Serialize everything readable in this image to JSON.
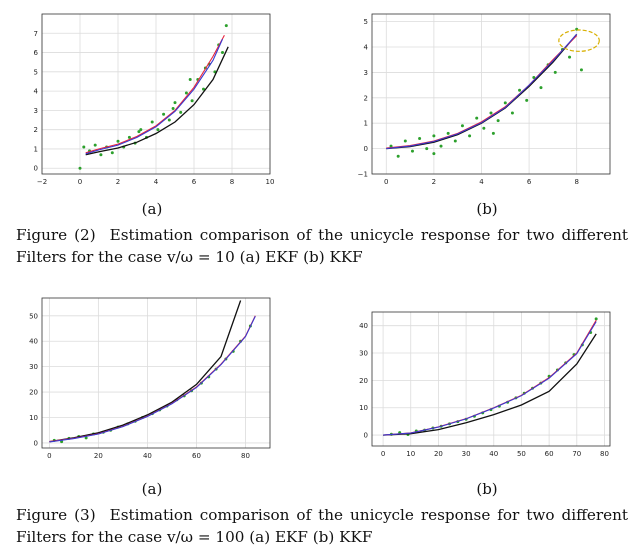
{
  "figure2": {
    "caption_number": "Figure (2)",
    "caption_text": "Estimation comparison of the unicycle response for two different Filters for the case v/ω = 10 (a) EKF (b) KKF",
    "label_a": "(a)",
    "label_b": "(b)"
  },
  "figure3": {
    "caption_number": "Figure (3)",
    "caption_text": "Estimation comparison of the unicycle response for two different Filters for the case v/ω = 100 (a) EKF (b) KKF",
    "label_a": "(a)",
    "label_b": "(b)"
  },
  "chart_data": [
    {
      "id": "fig2a",
      "type": "scatter",
      "xlim": [
        -2,
        10
      ],
      "ylim": [
        -0.3,
        8
      ],
      "xticks": [
        -2,
        0,
        2,
        4,
        6,
        8,
        10
      ],
      "yticks": [
        0,
        1,
        2,
        3,
        4,
        5,
        6,
        7
      ],
      "grid": true,
      "series": [
        {
          "role": "true-path",
          "color": "#111111",
          "points": [
            [
              0.3,
              0.7
            ],
            [
              1,
              0.85
            ],
            [
              2,
              1.05
            ],
            [
              3,
              1.35
            ],
            [
              4,
              1.8
            ],
            [
              5,
              2.4
            ],
            [
              6,
              3.3
            ],
            [
              7,
              4.6
            ],
            [
              7.8,
              6.3
            ]
          ]
        },
        {
          "role": "estimate-red",
          "color": "#e8243c",
          "points": [
            [
              0.3,
              0.8
            ],
            [
              1,
              1.0
            ],
            [
              2,
              1.25
            ],
            [
              3,
              1.65
            ],
            [
              4,
              2.2
            ],
            [
              5,
              3.0
            ],
            [
              6,
              4.2
            ],
            [
              7,
              5.8
            ],
            [
              7.6,
              6.9
            ]
          ]
        },
        {
          "role": "estimate-blue",
          "color": "#3a3ad0",
          "points": [
            [
              0.3,
              0.75
            ],
            [
              1,
              0.95
            ],
            [
              2,
              1.2
            ],
            [
              3,
              1.6
            ],
            [
              4,
              2.15
            ],
            [
              5,
              2.95
            ],
            [
              6,
              4.1
            ],
            [
              7,
              5.6
            ],
            [
              7.5,
              6.7
            ]
          ]
        },
        {
          "role": "measurements",
          "color": "#2ca02c",
          "points": [
            [
              0,
              0
            ],
            [
              0.2,
              1.1
            ],
            [
              0.5,
              0.9
            ],
            [
              0.8,
              1.2
            ],
            [
              1.1,
              0.7
            ],
            [
              1.4,
              1.1
            ],
            [
              1.7,
              0.8
            ],
            [
              2,
              1.4
            ],
            [
              2.3,
              1.1
            ],
            [
              2.6,
              1.6
            ],
            [
              2.9,
              1.3
            ],
            [
              3.2,
              2.0
            ],
            [
              3.5,
              1.6
            ],
            [
              3.8,
              2.4
            ],
            [
              4.1,
              2.0
            ],
            [
              4.4,
              2.8
            ],
            [
              4.7,
              2.5
            ],
            [
              5,
              3.4
            ],
            [
              5.3,
              2.9
            ],
            [
              5.6,
              3.9
            ],
            [
              5.9,
              3.5
            ],
            [
              6.2,
              4.6
            ],
            [
              6.5,
              4.1
            ],
            [
              6.8,
              5.4
            ],
            [
              7.1,
              5.0
            ],
            [
              7.3,
              6.4
            ],
            [
              7.5,
              6.0
            ],
            [
              7.7,
              7.4
            ],
            [
              6.6,
              5.2
            ],
            [
              5.8,
              4.6
            ],
            [
              4.9,
              3.1
            ],
            [
              3.1,
              1.9
            ]
          ]
        }
      ]
    },
    {
      "id": "fig2b",
      "type": "scatter",
      "xlim": [
        -0.6,
        9.4
      ],
      "ylim": [
        -1,
        5.3
      ],
      "xticks": [
        0,
        2,
        4,
        6,
        8
      ],
      "yticks": [
        -1,
        0,
        1,
        2,
        3,
        4,
        5
      ],
      "grid": true,
      "highlight_ellipse": {
        "cx": 8.1,
        "cy": 4.25,
        "rx": 0.85,
        "ry": 0.42,
        "color": "#d8b000"
      },
      "series": [
        {
          "role": "true-path",
          "color": "#111111",
          "points": [
            [
              0,
              0
            ],
            [
              1,
              0.08
            ],
            [
              2,
              0.25
            ],
            [
              3,
              0.55
            ],
            [
              4,
              1.0
            ],
            [
              5,
              1.6
            ],
            [
              6,
              2.45
            ],
            [
              7,
              3.4
            ],
            [
              8,
              4.5
            ]
          ]
        },
        {
          "role": "estimate-red",
          "color": "#e8243c",
          "points": [
            [
              0,
              0.02
            ],
            [
              1,
              0.12
            ],
            [
              2,
              0.3
            ],
            [
              3,
              0.6
            ],
            [
              4,
              1.05
            ],
            [
              5,
              1.65
            ],
            [
              6,
              2.5
            ],
            [
              7,
              3.5
            ],
            [
              8,
              4.45
            ]
          ]
        },
        {
          "role": "estimate-blue",
          "color": "#3a3ad0",
          "points": [
            [
              0,
              0
            ],
            [
              1,
              0.1
            ],
            [
              2,
              0.28
            ],
            [
              3,
              0.58
            ],
            [
              4,
              1.02
            ],
            [
              5,
              1.62
            ],
            [
              6,
              2.5
            ],
            [
              7,
              3.45
            ],
            [
              8,
              4.5
            ]
          ]
        },
        {
          "role": "measurements",
          "color": "#2ca02c",
          "points": [
            [
              0.2,
              0.1
            ],
            [
              0.5,
              -0.3
            ],
            [
              0.8,
              0.3
            ],
            [
              1.1,
              -0.1
            ],
            [
              1.4,
              0.4
            ],
            [
              1.7,
              0.0
            ],
            [
              2,
              0.5
            ],
            [
              2.3,
              0.1
            ],
            [
              2.6,
              0.6
            ],
            [
              2.9,
              0.3
            ],
            [
              3.2,
              0.9
            ],
            [
              3.5,
              0.5
            ],
            [
              3.8,
              1.2
            ],
            [
              4.1,
              0.8
            ],
            [
              4.4,
              1.4
            ],
            [
              4.7,
              1.1
            ],
            [
              5,
              1.8
            ],
            [
              5.3,
              1.4
            ],
            [
              5.6,
              2.3
            ],
            [
              5.9,
              1.9
            ],
            [
              6.2,
              2.8
            ],
            [
              6.5,
              2.4
            ],
            [
              6.8,
              3.3
            ],
            [
              7.1,
              3.0
            ],
            [
              7.4,
              3.9
            ],
            [
              7.7,
              3.6
            ],
            [
              8.0,
              4.7
            ],
            [
              8.2,
              3.1
            ],
            [
              2.0,
              -0.2
            ],
            [
              4.5,
              0.6
            ]
          ]
        }
      ]
    },
    {
      "id": "fig3a",
      "type": "scatter",
      "xlim": [
        -3,
        90
      ],
      "ylim": [
        -2,
        57
      ],
      "xticks": [
        0,
        20,
        40,
        60,
        80
      ],
      "yticks": [
        0,
        10,
        20,
        30,
        40,
        50
      ],
      "grid": true,
      "series": [
        {
          "role": "true-path",
          "color": "#111111",
          "points": [
            [
              0,
              0.5
            ],
            [
              10,
              2
            ],
            [
              20,
              4
            ],
            [
              30,
              7
            ],
            [
              40,
              11
            ],
            [
              50,
              16
            ],
            [
              60,
              23
            ],
            [
              70,
              34
            ],
            [
              78,
              56
            ]
          ]
        },
        {
          "role": "estimate-red",
          "color": "#e8243c",
          "points": [
            [
              0,
              0.5
            ],
            [
              10,
              1.8
            ],
            [
              20,
              3.6
            ],
            [
              30,
              6.5
            ],
            [
              40,
              10.5
            ],
            [
              50,
              15.5
            ],
            [
              60,
              22
            ],
            [
              70,
              31
            ],
            [
              80,
              42
            ],
            [
              84,
              50
            ]
          ]
        },
        {
          "role": "estimate-blue",
          "color": "#3a3ad0",
          "points": [
            [
              0,
              0.4
            ],
            [
              10,
              1.7
            ],
            [
              20,
              3.5
            ],
            [
              30,
              6.4
            ],
            [
              40,
              10.4
            ],
            [
              50,
              15.4
            ],
            [
              60,
              21.8
            ],
            [
              70,
              30.8
            ],
            [
              80,
              41.8
            ],
            [
              84,
              49.8
            ]
          ]
        },
        {
          "role": "measurements",
          "color": "#2ca02c",
          "points": [
            [
              2,
              1
            ],
            [
              5,
              0.5
            ],
            [
              8,
              1.8
            ],
            [
              12,
              2.5
            ],
            [
              15,
              2.0
            ],
            [
              18,
              3.5
            ],
            [
              22,
              4.2
            ],
            [
              25,
              5
            ],
            [
              28,
              6.2
            ],
            [
              32,
              7.5
            ],
            [
              35,
              8.5
            ],
            [
              38,
              10
            ],
            [
              42,
              11.5
            ],
            [
              45,
              13
            ],
            [
              48,
              14.5
            ],
            [
              52,
              17
            ],
            [
              55,
              18.5
            ],
            [
              58,
              20.5
            ],
            [
              62,
              23.5
            ],
            [
              65,
              26
            ],
            [
              68,
              29
            ],
            [
              72,
              33
            ],
            [
              75,
              36
            ],
            [
              78,
              40
            ],
            [
              82,
              46
            ]
          ]
        }
      ]
    },
    {
      "id": "fig3b",
      "type": "scatter",
      "xlim": [
        -4,
        82
      ],
      "ylim": [
        -4,
        45
      ],
      "xticks": [
        0,
        10,
        20,
        30,
        40,
        50,
        60,
        70,
        80
      ],
      "yticks": [
        0,
        10,
        20,
        30,
        40
      ],
      "grid": true,
      "series": [
        {
          "role": "true-path",
          "color": "#111111",
          "points": [
            [
              0,
              0
            ],
            [
              10,
              0.5
            ],
            [
              20,
              2
            ],
            [
              30,
              4.5
            ],
            [
              40,
              7.5
            ],
            [
              50,
              11
            ],
            [
              60,
              16
            ],
            [
              70,
              26
            ],
            [
              77,
              37
            ]
          ]
        },
        {
          "role": "estimate-red",
          "color": "#e8243c",
          "points": [
            [
              0,
              0
            ],
            [
              10,
              0.8
            ],
            [
              20,
              3
            ],
            [
              30,
              6
            ],
            [
              40,
              10
            ],
            [
              50,
              14.5
            ],
            [
              60,
              21
            ],
            [
              70,
              30
            ],
            [
              77,
              42
            ]
          ]
        },
        {
          "role": "estimate-blue",
          "color": "#3a3ad0",
          "points": [
            [
              0,
              0
            ],
            [
              10,
              0.7
            ],
            [
              20,
              2.9
            ],
            [
              30,
              5.9
            ],
            [
              40,
              9.9
            ],
            [
              50,
              14.4
            ],
            [
              60,
              20.8
            ],
            [
              70,
              29.8
            ],
            [
              77,
              41.5
            ]
          ]
        },
        {
          "role": "measurements",
          "color": "#2ca02c",
          "points": [
            [
              3,
              0.3
            ],
            [
              6,
              0.9
            ],
            [
              9,
              0.2
            ],
            [
              12,
              1.5
            ],
            [
              15,
              1.8
            ],
            [
              18,
              2.6
            ],
            [
              21,
              3.2
            ],
            [
              24,
              4.1
            ],
            [
              27,
              4.9
            ],
            [
              30,
              5.8
            ],
            [
              33,
              6.9
            ],
            [
              36,
              8.1
            ],
            [
              39,
              9.3
            ],
            [
              42,
              10.6
            ],
            [
              45,
              12
            ],
            [
              48,
              13.6
            ],
            [
              51,
              15.3
            ],
            [
              54,
              17.1
            ],
            [
              57,
              19
            ],
            [
              60,
              21.5
            ],
            [
              63,
              23.8
            ],
            [
              66,
              26.4
            ],
            [
              69,
              29.4
            ],
            [
              72,
              33
            ],
            [
              75,
              37.5
            ],
            [
              77,
              42.5
            ]
          ]
        }
      ]
    }
  ]
}
